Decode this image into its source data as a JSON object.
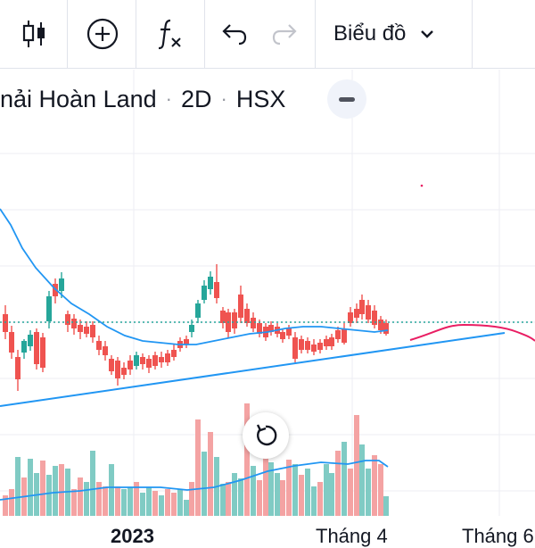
{
  "toolbar": {
    "candles_icon": "candlestick-icon",
    "add_indicator_icon": "plus-circle-icon",
    "formula_icon": "function-icon",
    "undo_icon": "undo-icon",
    "redo_icon": "redo-icon",
    "chart_type_label": "Biểu đồ",
    "dropdown_icon": "chevron-down-icon"
  },
  "legend": {
    "symbol_name": "nải Hoàn Land",
    "interval": "2D",
    "exchange": "HSX"
  },
  "x_axis": {
    "labels": [
      "2023",
      "Tháng 4",
      "Tháng 6"
    ]
  },
  "colors": {
    "up": "#26a69a",
    "down": "#ef5350",
    "ma_line": "#2196f3",
    "trend_line": "#2196f3",
    "forecast": "#e91e63",
    "price_line": "#26a69a",
    "grid": "#eceef3",
    "volume_up": "#80cbc4",
    "volume_down": "#f4a3a3"
  }
}
